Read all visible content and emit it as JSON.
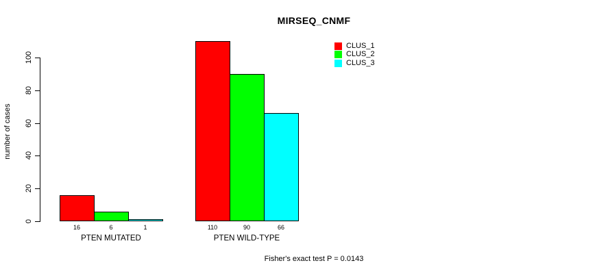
{
  "chart_data": {
    "type": "bar",
    "title": "MIRSEQ_CNMF",
    "xlabel": "",
    "ylabel": "number of cases",
    "categories": [
      "PTEN MUTATED",
      "PTEN WILD-TYPE"
    ],
    "series": [
      {
        "name": "CLUS_1",
        "color": "#ff0000",
        "values": [
          16,
          110
        ]
      },
      {
        "name": "CLUS_2",
        "color": "#00ff00",
        "values": [
          6,
          90
        ]
      },
      {
        "name": "CLUS_3",
        "color": "#00ffff",
        "values": [
          1,
          66
        ]
      }
    ],
    "yticks": [
      0,
      20,
      40,
      60,
      80,
      100
    ],
    "ylim": [
      0,
      110
    ],
    "grid": false,
    "bar_value_labels_shown": true,
    "legend": {
      "position": "top-right",
      "entries": [
        "CLUS_1",
        "CLUS_2",
        "CLUS_3"
      ]
    },
    "annotation": "Fisher's exact test P = 0.0143"
  }
}
